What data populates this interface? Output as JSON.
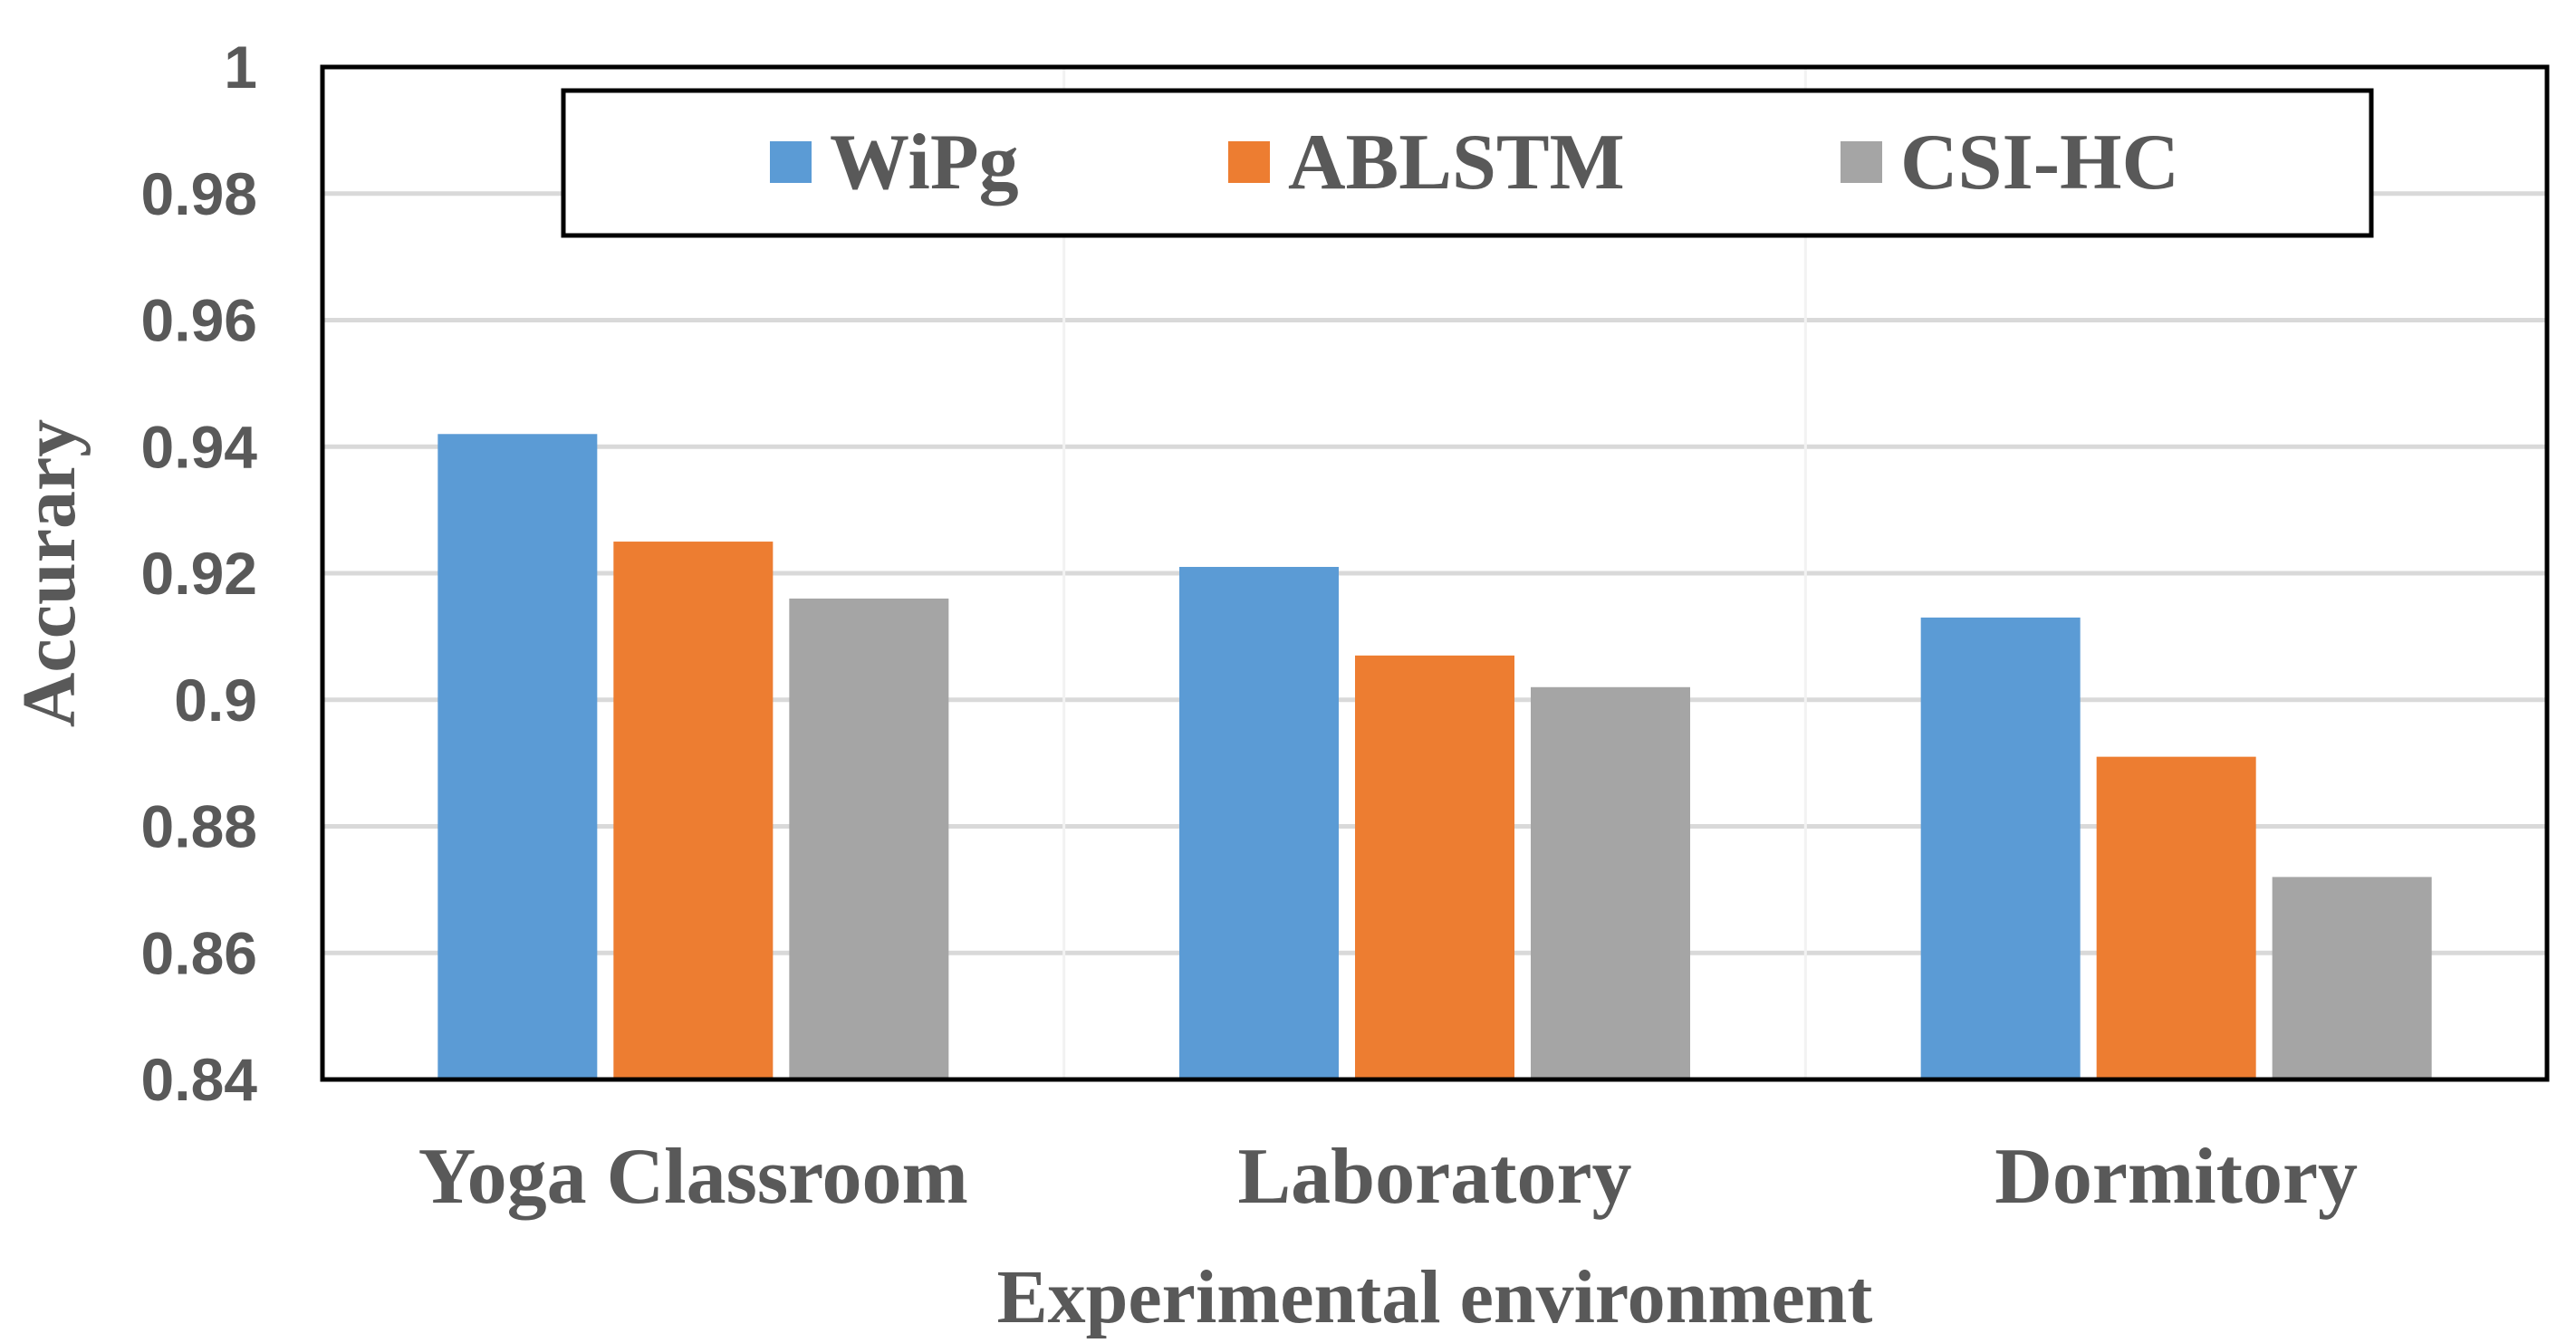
{
  "chart_data": {
    "type": "bar",
    "title": "",
    "xlabel": "Experimental environment",
    "ylabel": "Accurary",
    "categories": [
      "Yoga Classroom",
      "Laboratory",
      "Dormitory"
    ],
    "series": [
      {
        "name": "WiPg",
        "color": "#5B9BD5",
        "values": [
          0.942,
          0.921,
          0.913
        ]
      },
      {
        "name": "ABLSTM",
        "color": "#ED7D31",
        "values": [
          0.925,
          0.907,
          0.891
        ]
      },
      {
        "name": "CSI-HC",
        "color": "#A5A5A5",
        "values": [
          0.916,
          0.902,
          0.872
        ]
      }
    ],
    "ylim": [
      0.84,
      1.0
    ],
    "yticks": [
      0.84,
      0.86,
      0.88,
      0.9,
      0.92,
      0.94,
      0.96,
      0.98,
      1
    ],
    "ytick_labels": [
      "0.84",
      "0.86",
      "0.88",
      "0.9",
      "0.92",
      "0.94",
      "0.96",
      "0.98",
      "1"
    ],
    "grid": true,
    "legend_position": "top"
  }
}
